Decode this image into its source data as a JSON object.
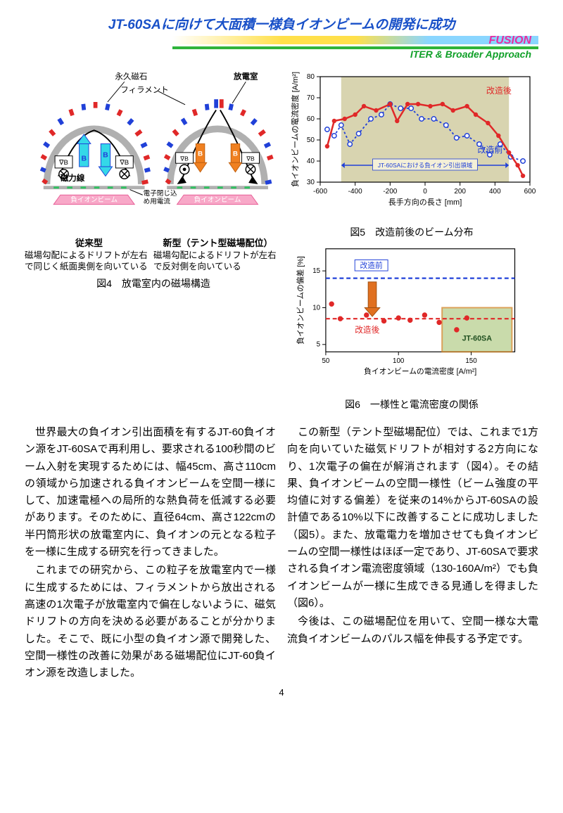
{
  "title": "JT-60SAに向けて大面積一様負イオンビームの開発に成功",
  "banner": {
    "fusion": "FUSION",
    "iter": "ITER & Broader Approach"
  },
  "fig4": {
    "labels": {
      "magnet": "永久磁石",
      "filament": "フィラメント",
      "chamber": "放電室",
      "field_line": "磁力線",
      "beam": "負イオンビーム",
      "electron": "電子閉じ込め用電流"
    },
    "left": {
      "title": "従来型",
      "desc": "磁場勾配によるドリフトが左右で同じく紙面奥側を向いている"
    },
    "right": {
      "title": "新型（テント型磁場配位）",
      "desc": "磁場勾配によるドリフトが左右で反対側を向いている"
    },
    "caption": "図4　放電室内の磁場構造",
    "colors": {
      "wall": "#b0b0b0",
      "red": "#e02828",
      "blue": "#2040d8",
      "cyan": "#34d8e8",
      "orange": "#f08020",
      "pink": "#f8a8c8",
      "green": "#30c060"
    }
  },
  "fig5": {
    "caption": "図5　改造前後のビーム分布",
    "ylabel": "負イオンビームの電流密度 [A/m²]",
    "xlabel": "長手方向の長さ [mm]",
    "legend_after": "改造後",
    "legend_before": "改造前",
    "box_label": "JT-60SAにおける負イオン引出領域",
    "xlim": [
      -600,
      600
    ],
    "ylim": [
      30,
      80
    ],
    "xticks": [
      -600,
      -400,
      -200,
      0,
      200,
      400,
      600
    ],
    "yticks": [
      30,
      40,
      50,
      60,
      70,
      80
    ],
    "shade_x": [
      -480,
      480
    ],
    "shade_color": "#b8b070",
    "before_color": "#2040d8",
    "after_color": "#e02828",
    "after_pts": [
      [
        -560,
        47
      ],
      [
        -520,
        59
      ],
      [
        -460,
        60
      ],
      [
        -400,
        62
      ],
      [
        -350,
        66
      ],
      [
        -280,
        64
      ],
      [
        -200,
        67
      ],
      [
        -160,
        59
      ],
      [
        -100,
        67
      ],
      [
        -40,
        67
      ],
      [
        30,
        66
      ],
      [
        100,
        67
      ],
      [
        160,
        64
      ],
      [
        240,
        66
      ],
      [
        290,
        62
      ],
      [
        360,
        58
      ],
      [
        420,
        52
      ],
      [
        480,
        44
      ],
      [
        530,
        38
      ],
      [
        560,
        33
      ]
    ],
    "before_pts": [
      [
        -560,
        55
      ],
      [
        -520,
        52
      ],
      [
        -480,
        57
      ],
      [
        -430,
        48
      ],
      [
        -380,
        53
      ],
      [
        -310,
        60
      ],
      [
        -250,
        62
      ],
      [
        -200,
        67
      ],
      [
        -140,
        65
      ],
      [
        -80,
        65
      ],
      [
        -20,
        60
      ],
      [
        50,
        60
      ],
      [
        120,
        57
      ],
      [
        180,
        51
      ],
      [
        240,
        52
      ],
      [
        310,
        48
      ],
      [
        370,
        43
      ],
      [
        430,
        48
      ],
      [
        490,
        42
      ],
      [
        560,
        40
      ]
    ]
  },
  "fig6": {
    "caption": "図6　一様性と電流密度の関係",
    "ylabel": "負イオンビームの偏差 [%]",
    "xlabel": "負イオンビームの電流密度 [A/m²]",
    "legend_before": "改造前",
    "legend_after": "改造後",
    "target_label": "JT-60SA",
    "xlim": [
      50,
      180
    ],
    "ylim": [
      4,
      18
    ],
    "xticks": [
      50,
      100,
      150
    ],
    "yticks": [
      5,
      10,
      15
    ],
    "target_box": {
      "x": [
        130,
        178
      ],
      "y": [
        4,
        10
      ],
      "fill": "#b8d090",
      "stroke": "#d08020"
    },
    "before_line_y": 14,
    "after_line_y": 8.5,
    "before_color": "#2040d8",
    "after_color": "#e02828",
    "arrow_color": "#e07020",
    "pts": [
      [
        54,
        10.5
      ],
      [
        60,
        8.5
      ],
      [
        78,
        9
      ],
      [
        90,
        8.2
      ],
      [
        100,
        8.6
      ],
      [
        108,
        8.3
      ],
      [
        118,
        9
      ],
      [
        128,
        8
      ],
      [
        140,
        7
      ],
      [
        147,
        8.6
      ]
    ]
  },
  "body": {
    "p1": "世界最大の負イオン引出面積を有するJT-60負イオン源をJT-60SAで再利用し、要求される100秒間のビーム入射を実現するためには、幅45cm、高さ110cmの領域から加速される負イオンビームを空間一様にして、加速電極への局所的な熱負荷を低減する必要があります。そのために、直径64cm、高さ122cmの半円筒形状の放電室内に、負イオンの元となる粒子を一様に生成する研究を行ってきました。",
    "p2": "これまでの研究から、この粒子を放電室内で一様に生成するためには、フィラメントから放出される高速の1次電子が放電室内で偏在しないように、磁気ドリフトの方向を決める必要があることが分かりました。そこで、既に小型の負イオン源で開発した、空間一様性の改善に効果がある磁場配位にJT-60負イオン源を改造しました。",
    "p3": "この新型（テント型磁場配位）では、これまで1方向を向いていた磁気ドリフトが相対する2方向になり、1次電子の偏在が解消されます（図4）。その結果、負イオンビームの空間一様性（ビーム強度の平均値に対する偏差）を従来の14%からJT-60SAの設計値である10%以下に改善することに成功しました（図5）。また、放電電力を増加させても負イオンビームの空間一様性はほぼ一定であり、JT-60SAで要求される負イオン電流密度領域（130-160A/m²）でも負イオンビームが一様に生成できる見通しを得ました（図6）。",
    "p4": "今後は、この磁場配位を用いて、空間一様な大電流負イオンビームのパルス幅を伸長する予定です。"
  },
  "page": "4"
}
